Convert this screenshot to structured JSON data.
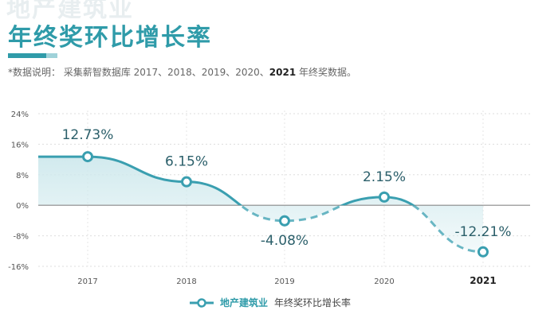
{
  "header": {
    "watermark": "地产建筑业",
    "title": "年终奖环比增长率"
  },
  "note": {
    "prefix": "*数据说明：  采集薪智数据库 2017、2018、2019、2020、",
    "highlight": "2021",
    "suffix": " 年终奖数据。"
  },
  "chart_data": {
    "type": "line",
    "categories": [
      "2017",
      "2018",
      "2019",
      "2020",
      "2021"
    ],
    "series": [
      {
        "name": "地产建筑业 年终奖环比增长率",
        "values": [
          12.73,
          6.15,
          -4.08,
          2.15,
          -12.21
        ],
        "labels": [
          "12.73%",
          "6.15%",
          "-4.08%",
          "2.15%",
          "-12.21%"
        ]
      }
    ],
    "yticks": [
      "24%",
      "16%",
      "8%",
      "0%",
      "-8%",
      "-16%"
    ],
    "ytick_values": [
      24,
      16,
      8,
      0,
      -8,
      -16
    ],
    "ylim": [
      -16,
      24
    ],
    "grid": true,
    "legend": "bottom",
    "colors": {
      "line": "#3a9fb0",
      "fill": "#cfe9ed",
      "zero": "#888888",
      "grid": "#dddddd"
    }
  },
  "legend": {
    "main": "地产建筑业",
    "sub": "年终奖环比增长率"
  }
}
